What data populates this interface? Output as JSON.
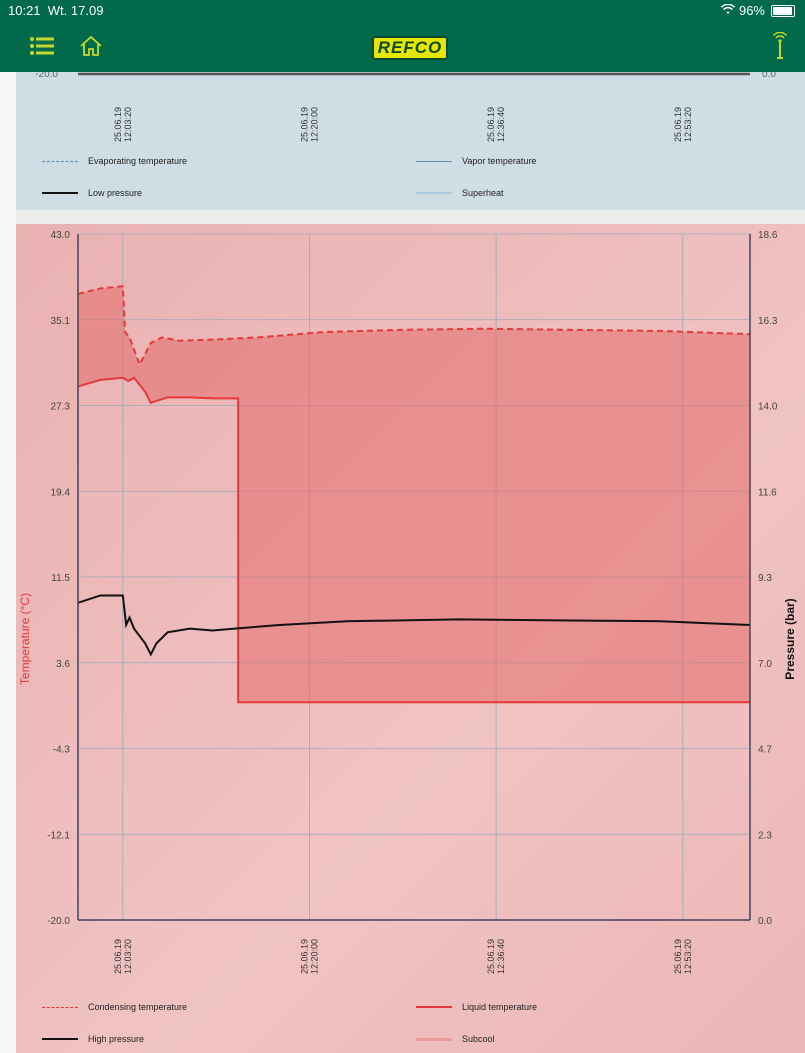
{
  "status": {
    "time": "10:21",
    "date": "Wt. 17.09",
    "battery": "96%",
    "battery_level": 0.96
  },
  "header": {
    "logo": "REFCO",
    "menu_icon": "menu-icon",
    "home_icon": "home-icon",
    "signal_icon": "signal-antenna-icon"
  },
  "colors": {
    "brand_green": "#006a4a",
    "logo_yellow": "#e6e600",
    "low_panel": "#cfdde4",
    "high_panel": "#f0c3c3",
    "red": "#e5383b"
  },
  "top_chart": {
    "left_axis_min": "-20.0",
    "right_axis_min": "0.0",
    "x_ticks": [
      "25.06.19\n12:03:20",
      "25.06.19\n12:20:00",
      "25.06.19\n12:36:40",
      "25.06.19\n12:53:20"
    ],
    "legend": [
      "Evaporating temperature",
      "Vapor temperature",
      "Low pressure",
      "Superheat"
    ]
  },
  "chart_data": {
    "type": "line",
    "title": "",
    "xlabel": "",
    "ylabel": "Temperature (°C)",
    "y2label": "Pressure (bar)",
    "ylim": [
      -20.0,
      43.0
    ],
    "y2lim": [
      0.0,
      18.6
    ],
    "y_ticks": [
      "43.0",
      "35.1",
      "27.3",
      "19.4",
      "11.5",
      "3.6",
      "-4.3",
      "-12.1",
      "-20.0"
    ],
    "y2_ticks": [
      "18.6",
      "16.3",
      "14.0",
      "11.6",
      "9.3",
      "7.0",
      "4.7",
      "2.3",
      "0.0"
    ],
    "x_ticks": [
      "25.06.19\n12:03:20",
      "25.06.19\n12:20:00",
      "25.06.19\n12:36:40",
      "25.06.19\n12:53:20"
    ],
    "x_range_min": [
      -4,
      56
    ],
    "series": [
      {
        "name": "Condensing temperature",
        "style": "dashed",
        "x": [
          -4,
          -2,
          0,
          0.2,
          0.6,
          1.5,
          2.5,
          3.5,
          5,
          8,
          12,
          18,
          25,
          32,
          40,
          48,
          56
        ],
        "y": [
          37.5,
          38,
          38.2,
          34,
          33.5,
          31,
          33,
          33.5,
          33.2,
          33.3,
          33.5,
          34,
          34.2,
          34.3,
          34.2,
          34.1,
          33.8
        ]
      },
      {
        "name": "Liquid temperature",
        "style": "solid",
        "x": [
          -4,
          -2,
          0,
          0.5,
          1,
          2,
          2.5,
          4,
          6,
          8,
          10,
          10.3,
          12,
          20,
          30,
          40,
          50,
          56
        ],
        "y": [
          29,
          29.6,
          29.8,
          29.5,
          29.8,
          28.5,
          27.5,
          28,
          28,
          27.9,
          27.9,
          0,
          0,
          0,
          0,
          0,
          0,
          0
        ]
      },
      {
        "name": "High pressure",
        "style": "solid",
        "x": [
          -4,
          -2,
          0,
          0.3,
          0.6,
          1,
          2,
          2.5,
          3,
          4,
          6,
          8,
          10,
          14,
          20,
          30,
          40,
          48,
          56
        ],
        "y": [
          8.6,
          8.8,
          8.8,
          8.0,
          8.2,
          7.9,
          7.5,
          7.2,
          7.5,
          7.8,
          7.9,
          7.85,
          7.9,
          8.0,
          8.1,
          8.15,
          8.12,
          8.1,
          8.0
        ]
      },
      {
        "name": "Subcool",
        "style": "area"
      }
    ],
    "legend": [
      "Condensing temperature",
      "Liquid temperature",
      "High pressure",
      "Subcool"
    ]
  }
}
